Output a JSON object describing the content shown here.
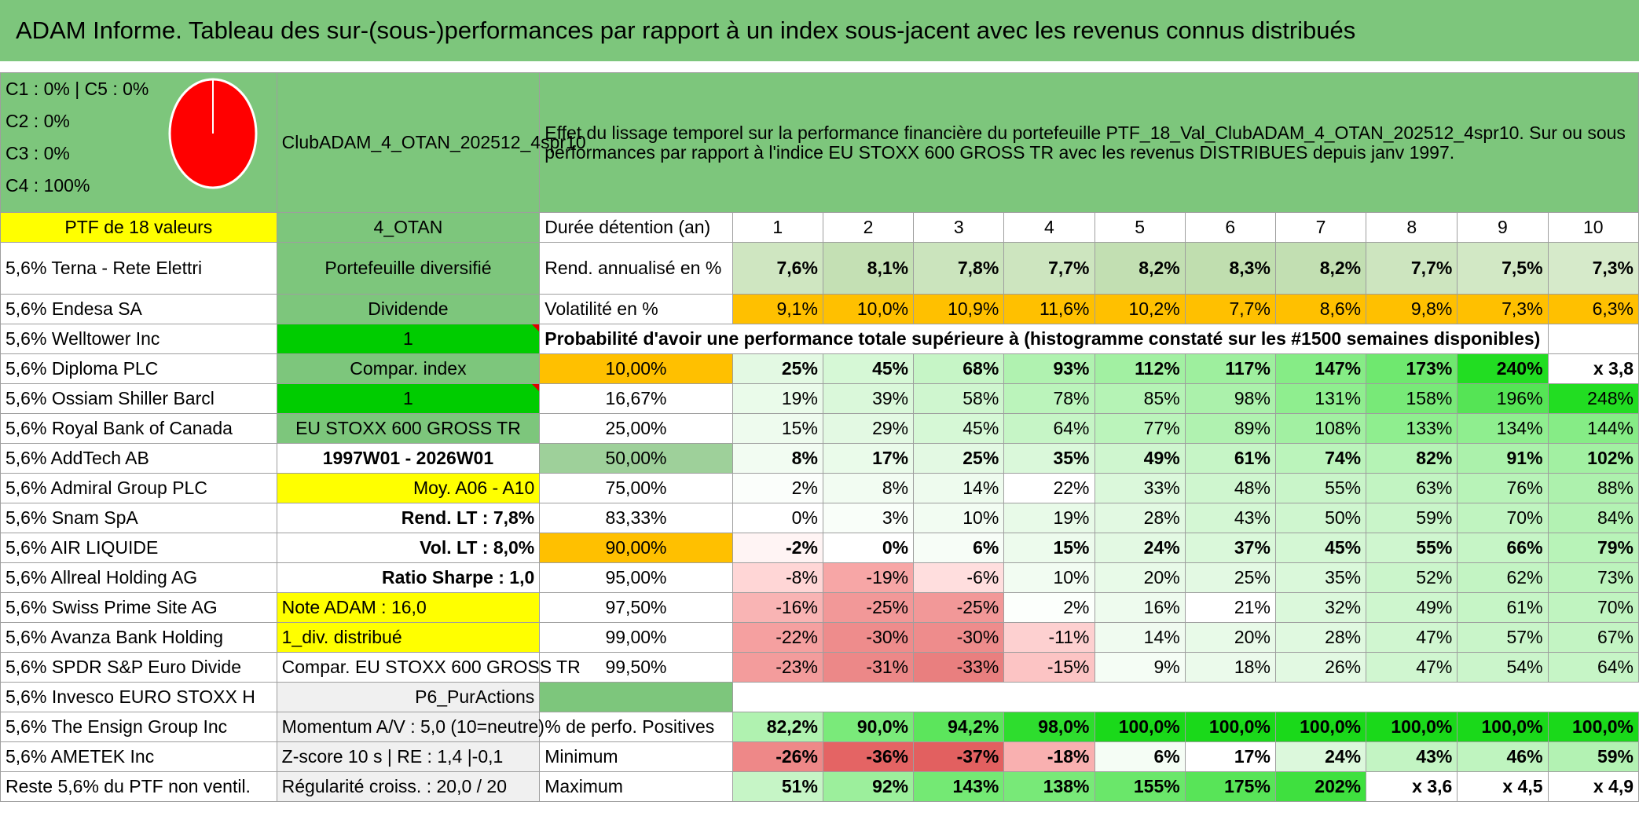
{
  "title": "ADAM Informe. Tableau des sur-(sous-)performances par rapport à un index sous-jacent avec les revenus connus distribués",
  "legend": {
    "lines": [
      "C1 : 0% | C5 : 0%",
      "C2 : 0%",
      "C3 : 0%",
      "C4 : 100%"
    ],
    "pie_colors": {
      "c4": "#ff0000"
    },
    "pie_shares": {
      "C1": 0,
      "C2": 0,
      "C3": 0,
      "C4": 100,
      "C5": 0
    }
  },
  "portfolio_name": "ClubADAM_4_OTAN_202512_4spr10",
  "description": "Effet du lissage temporel sur la performance financière du portefeuille PTF_18_Val_ClubADAM_4_OTAN_202512_4spr10. Sur ou sous performances par rapport à l'indice EU STOXX 600 GROSS TR avec les revenus DISTRIBUES depuis janv 1997.",
  "ptf_label": "PTF de 18 valeurs",
  "otan": "4_OTAN",
  "holdings": [
    "5,6% Terna - Rete Elettri",
    "5,6% Endesa SA",
    "5,6% Welltower Inc",
    "5,6% Diploma PLC",
    "5,6% Ossiam Shiller Barcl",
    "5,6% Royal Bank of Canada",
    "5,6% AddTech AB",
    "5,6% Admiral Group PLC",
    "5,6% Snam SpA",
    "5,6% AIR LIQUIDE",
    "5,6% Allreal Holding AG",
    "5,6% Swiss Prime Site AG",
    "5,6% Avanza Bank Holding",
    "5,6% SPDR S&P Euro Divide",
    "5,6% Invesco EURO STOXX H",
    "5,6% The Ensign Group Inc",
    "5,6% AMETEK Inc",
    "Reste 5,6% du PTF non ventil."
  ],
  "info": [
    "Portefeuille diversifié",
    "Dividende",
    "1",
    "Compar. index",
    "1",
    "EU STOXX 600 GROSS TR",
    "1997W01 - 2026W01",
    "Moy. A06 - A10",
    "Rend. LT : 7,8%",
    "Vol. LT : 8,0%",
    "Ratio Sharpe : 1,0",
    "Note ADAM : 16,0",
    "1_div. distribué",
    "Compar. EU STOXX 600 GROSS TR",
    "P6_PurActions",
    "Momentum A/V : 5,0 (10=neutre)",
    "Z-score 10 s | RE : 1,4 |-0,1",
    "Régularité croiss. : 20,0 / 20"
  ],
  "duration_label": "Durée détention (an)",
  "years": [
    "1",
    "2",
    "3",
    "4",
    "5",
    "6",
    "7",
    "8",
    "9",
    "10"
  ],
  "rend_label": "Rend. annualisé en %",
  "rend": [
    "7,6%",
    "8,1%",
    "7,8%",
    "7,7%",
    "8,2%",
    "8,3%",
    "8,2%",
    "7,7%",
    "7,5%",
    "7,3%"
  ],
  "vol_label": "Volatilité en %",
  "vol": [
    "9,1%",
    "10,0%",
    "10,9%",
    "11,6%",
    "10,2%",
    "7,7%",
    "8,6%",
    "9,8%",
    "7,3%",
    "6,3%"
  ],
  "prob_label": "Probabilité d'avoir une performance totale supérieure à (histogramme constaté sur les #1500 semaines disponibles)",
  "prob_rows": [
    {
      "p": "10,00%",
      "v": [
        "25%",
        "45%",
        "68%",
        "93%",
        "112%",
        "117%",
        "147%",
        "173%",
        "240%",
        "x 3,8"
      ]
    },
    {
      "p": "16,67%",
      "v": [
        "19%",
        "39%",
        "58%",
        "78%",
        "85%",
        "98%",
        "131%",
        "158%",
        "196%",
        "248%"
      ]
    },
    {
      "p": "25,00%",
      "v": [
        "15%",
        "29%",
        "45%",
        "64%",
        "77%",
        "89%",
        "108%",
        "133%",
        "134%",
        "144%"
      ]
    },
    {
      "p": "50,00%",
      "v": [
        "8%",
        "17%",
        "25%",
        "35%",
        "49%",
        "61%",
        "74%",
        "82%",
        "91%",
        "102%"
      ]
    },
    {
      "p": "75,00%",
      "v": [
        "2%",
        "8%",
        "14%",
        "22%",
        "33%",
        "48%",
        "55%",
        "63%",
        "76%",
        "88%"
      ]
    },
    {
      "p": "83,33%",
      "v": [
        "0%",
        "3%",
        "10%",
        "19%",
        "28%",
        "43%",
        "50%",
        "59%",
        "70%",
        "84%"
      ]
    },
    {
      "p": "90,00%",
      "v": [
        "-2%",
        "0%",
        "6%",
        "15%",
        "24%",
        "37%",
        "45%",
        "55%",
        "66%",
        "79%"
      ]
    },
    {
      "p": "95,00%",
      "v": [
        "-8%",
        "-19%",
        "-6%",
        "10%",
        "20%",
        "25%",
        "35%",
        "52%",
        "62%",
        "73%"
      ]
    },
    {
      "p": "97,50%",
      "v": [
        "-16%",
        "-25%",
        "-25%",
        "2%",
        "16%",
        "21%",
        "32%",
        "49%",
        "61%",
        "70%"
      ]
    },
    {
      "p": "99,00%",
      "v": [
        "-22%",
        "-30%",
        "-30%",
        "-11%",
        "14%",
        "20%",
        "28%",
        "47%",
        "57%",
        "67%"
      ]
    },
    {
      "p": "99,50%",
      "v": [
        "-23%",
        "-31%",
        "-33%",
        "-15%",
        "9%",
        "18%",
        "26%",
        "47%",
        "54%",
        "64%"
      ]
    }
  ],
  "pos_label": "% de perfo. Positives",
  "pos": [
    "82,2%",
    "90,0%",
    "94,2%",
    "98,0%",
    "100,0%",
    "100,0%",
    "100,0%",
    "100,0%",
    "100,0%",
    "100,0%"
  ],
  "min_label": "Minimum",
  "min": [
    "-26%",
    "-36%",
    "-37%",
    "-18%",
    "6%",
    "17%",
    "24%",
    "43%",
    "46%",
    "59%"
  ],
  "max_label": "Maximum",
  "max": [
    "51%",
    "92%",
    "143%",
    "138%",
    "155%",
    "175%",
    "202%",
    "x 3,6",
    "x 4,5",
    "x 4,9"
  ],
  "colors": {
    "title_green": "#7dc67c",
    "yellow": "#ffff00",
    "orange": "#ffc000",
    "bright_green": "#00cc00",
    "red_text": "#e00000",
    "pie_red": "#ff0000"
  }
}
